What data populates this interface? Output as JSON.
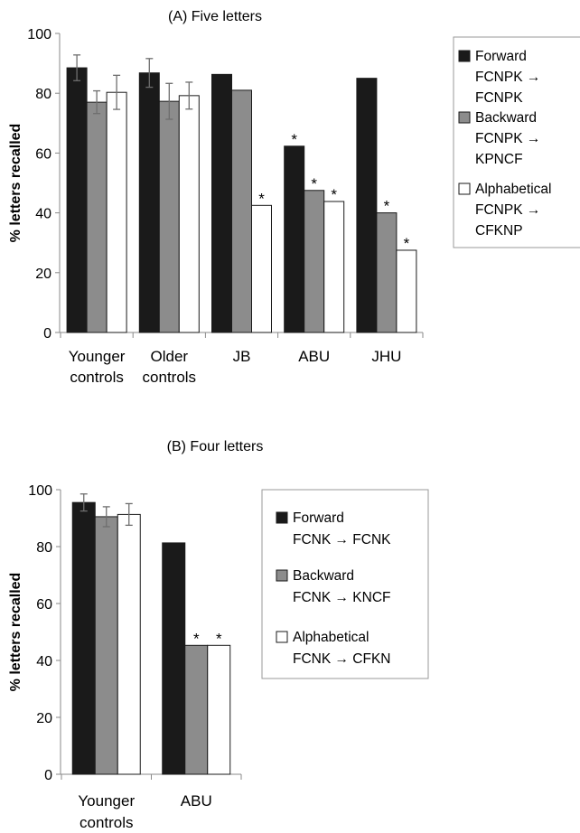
{
  "chart_data": [
    {
      "type": "bar",
      "title": "(A) Five letters",
      "ylabel": "% letters recalled",
      "xlabel": "",
      "ylim": [
        0,
        100
      ],
      "yticks": [
        0,
        20,
        40,
        60,
        80,
        100
      ],
      "grid": false,
      "legend_position": "right",
      "categories": [
        [
          "Younger",
          "controls"
        ],
        [
          "Older",
          "controls"
        ],
        [
          "JB"
        ],
        [
          "ABU"
        ],
        [
          "JHU"
        ]
      ],
      "series": [
        {
          "name": "Forward",
          "legend_lines": [
            "FCNPK →",
            "FCNPK"
          ],
          "color": "#1a1a1a",
          "values": [
            88.5,
            86.8,
            86.3,
            62.3,
            85.0
          ],
          "errors": [
            4.3,
            4.8,
            null,
            null,
            null
          ],
          "significant": [
            false,
            false,
            false,
            true,
            false
          ]
        },
        {
          "name": "Backward",
          "legend_lines": [
            "FCNPK →",
            "KPNCF"
          ],
          "color": "#8c8c8c",
          "values": [
            77.0,
            77.3,
            81.0,
            47.5,
            40.0
          ],
          "errors": [
            3.8,
            6.0,
            null,
            null,
            null
          ],
          "significant": [
            false,
            false,
            false,
            true,
            true
          ]
        },
        {
          "name": "Alphabetical",
          "legend_lines": [
            "FCNPK →",
            "CFKNP"
          ],
          "color": "#ffffff",
          "values": [
            80.3,
            79.2,
            42.5,
            43.8,
            27.5
          ],
          "errors": [
            5.7,
            4.5,
            null,
            null,
            null
          ],
          "significant": [
            false,
            false,
            true,
            true,
            true
          ]
        }
      ]
    },
    {
      "type": "bar",
      "title": "(B) Four letters",
      "ylabel": "% letters recalled",
      "xlabel": "",
      "ylim": [
        0,
        100
      ],
      "yticks": [
        0,
        20,
        40,
        60,
        80,
        100
      ],
      "grid": false,
      "legend_position": "right",
      "categories": [
        [
          "Younger",
          "controls"
        ],
        [
          "ABU"
        ]
      ],
      "series": [
        {
          "name": "Forward",
          "legend_lines": [
            "FCNK → FCNK"
          ],
          "color": "#1a1a1a",
          "values": [
            95.5,
            81.3
          ],
          "errors": [
            3.0,
            null
          ],
          "significant": [
            false,
            false
          ]
        },
        {
          "name": "Backward",
          "legend_lines": [
            "FCNK → KNCF"
          ],
          "color": "#8c8c8c",
          "values": [
            90.5,
            45.3
          ],
          "errors": [
            3.5,
            null
          ],
          "significant": [
            false,
            true
          ]
        },
        {
          "name": "Alphabetical",
          "legend_lines": [
            "FCNK → CFKN"
          ],
          "color": "#ffffff",
          "values": [
            91.3,
            45.3
          ],
          "errors": [
            3.8,
            null
          ],
          "significant": [
            false,
            true
          ]
        }
      ]
    }
  ],
  "significance_marker": "*"
}
